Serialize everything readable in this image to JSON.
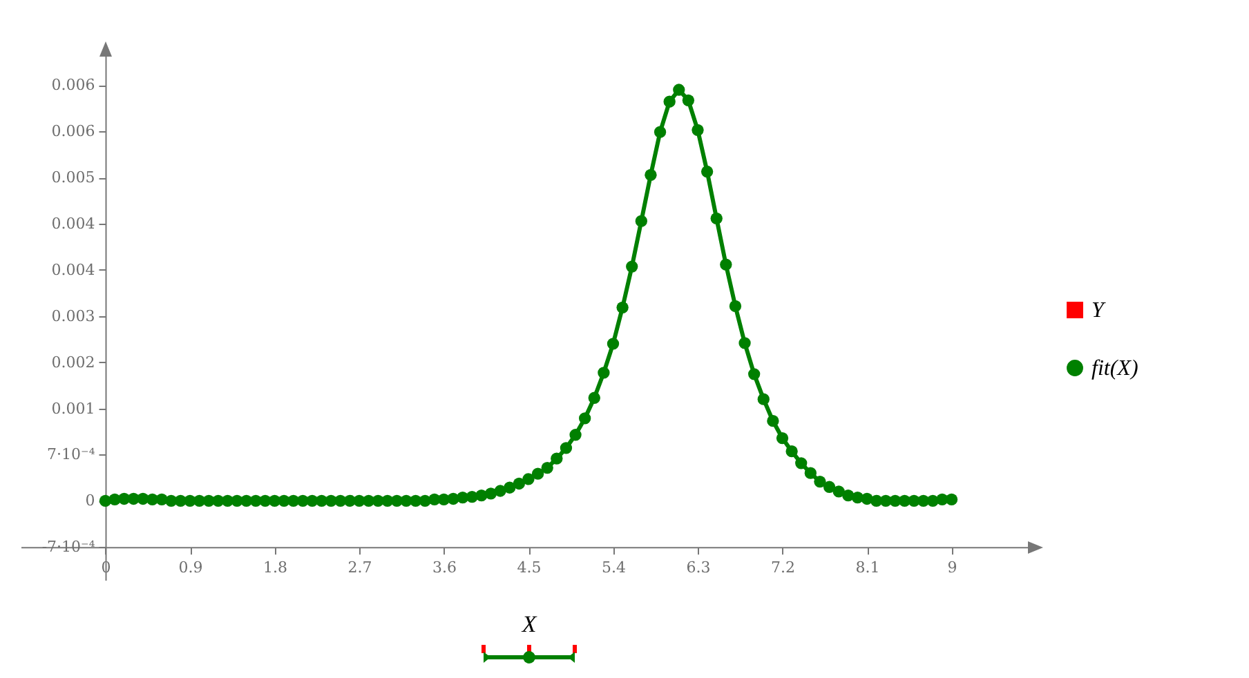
{
  "chart_data": {
    "type": "line",
    "xlabel": "X",
    "x": [
      0,
      0.1,
      0.2,
      0.3,
      0.4,
      0.5,
      0.6,
      0.7,
      0.8,
      0.9,
      1,
      1.1,
      1.2,
      1.3,
      1.4,
      1.5,
      1.6,
      1.7,
      1.8,
      1.9,
      2,
      2.1,
      2.2,
      2.3,
      2.4,
      2.5,
      2.6,
      2.7,
      2.8,
      2.9,
      3,
      3.1,
      3.2,
      3.3,
      3.4,
      3.5,
      3.6,
      3.7,
      3.8,
      3.9,
      4,
      4.1,
      4.2,
      4.3,
      4.4,
      4.5,
      4.6,
      4.7,
      4.8,
      4.9,
      5,
      5.1,
      5.2,
      5.3,
      5.4,
      5.5,
      5.6,
      5.7,
      5.8,
      5.9,
      6,
      6.1,
      6.2,
      6.3,
      6.4,
      6.5,
      6.6,
      6.7,
      6.8,
      6.9,
      7,
      7.1,
      7.2,
      7.3,
      7.4,
      7.5,
      7.6,
      7.7,
      7.8,
      7.9,
      8,
      8.1,
      8.2,
      8.3,
      8.4,
      8.5,
      8.6,
      8.7,
      8.8,
      8.9,
      9
    ],
    "xlim": [
      -0.9,
      9.9
    ],
    "xticks": [
      0,
      0.9,
      1.8,
      2.7,
      3.6,
      4.5,
      5.4,
      6.3,
      7.2,
      8.1,
      9
    ],
    "ylim": [
      -0.0012,
      0.0069
    ],
    "yticks": [
      {
        "value": -0.0007,
        "label": "-7·10⁻⁴"
      },
      0,
      {
        "value": 0.0007,
        "label": "7·10⁻⁴"
      },
      {
        "value": 0.0014,
        "label": "0.001"
      },
      {
        "value": 0.0021,
        "label": "0.002"
      },
      {
        "value": 0.0028,
        "label": "0.003"
      },
      {
        "value": 0.0035,
        "label": "0.004"
      },
      {
        "value": 0.0042,
        "label": "0.004"
      },
      {
        "value": 0.0049,
        "label": "0.005"
      },
      {
        "value": 0.0056,
        "label": "0.006"
      },
      {
        "value": 0.0063,
        "label": "0.006"
      }
    ],
    "legend": "right",
    "marker": "circle",
    "line_style": "solid",
    "series": [
      {
        "name": "Y",
        "type": "scatter",
        "marker": "square",
        "color": "#ff0000",
        "values": [
          null,
          null,
          null,
          null,
          null,
          null,
          null,
          null,
          null,
          null,
          null,
          null,
          null,
          null,
          null,
          null,
          null,
          null,
          null,
          null,
          null,
          null,
          null,
          null,
          null,
          null,
          null,
          null,
          null,
          null,
          null,
          null,
          null,
          null,
          null,
          null,
          null,
          null,
          null,
          null,
          null,
          null,
          null,
          null,
          null,
          null,
          null,
          null,
          null,
          null,
          null,
          null,
          null,
          null,
          null,
          null,
          null,
          null,
          null,
          null,
          null,
          null,
          null,
          null,
          null,
          null,
          null,
          null,
          null,
          null,
          null,
          null,
          null,
          null,
          null,
          null,
          null,
          null,
          null,
          null,
          null,
          null,
          null,
          null,
          null,
          null,
          null,
          null,
          null,
          null,
          null
        ]
      },
      {
        "name": "fit(X)",
        "color": "#008000",
        "values": [
          0,
          2e-05,
          3e-05,
          3e-05,
          3e-05,
          2e-05,
          2e-05,
          0,
          0,
          0,
          0,
          0,
          0,
          0,
          0,
          0,
          0,
          0,
          0,
          0,
          0,
          0,
          0,
          0,
          0,
          0,
          0,
          0,
          0,
          0,
          0,
          0,
          0,
          0,
          0,
          2e-05,
          2e-05,
          3e-05,
          5e-05,
          6e-05,
          8e-05,
          0.00011,
          0.00015,
          0.0002,
          0.00026,
          0.00033,
          0.00041,
          0.0005,
          0.00064,
          0.0008,
          0.001,
          0.00125,
          0.00156,
          0.00194,
          0.00238,
          0.00293,
          0.00355,
          0.00424,
          0.00494,
          0.00559,
          0.00605,
          0.00623,
          0.00607,
          0.00562,
          0.00499,
          0.00428,
          0.00358,
          0.00295,
          0.00239,
          0.00192,
          0.00154,
          0.00121,
          0.00095,
          0.00075,
          0.00057,
          0.00042,
          0.00029,
          0.00021,
          0.00014,
          8e-05,
          5e-05,
          3e-05,
          0,
          0,
          0,
          0,
          0,
          0,
          0,
          2e-05,
          2e-05
        ]
      }
    ]
  }
}
